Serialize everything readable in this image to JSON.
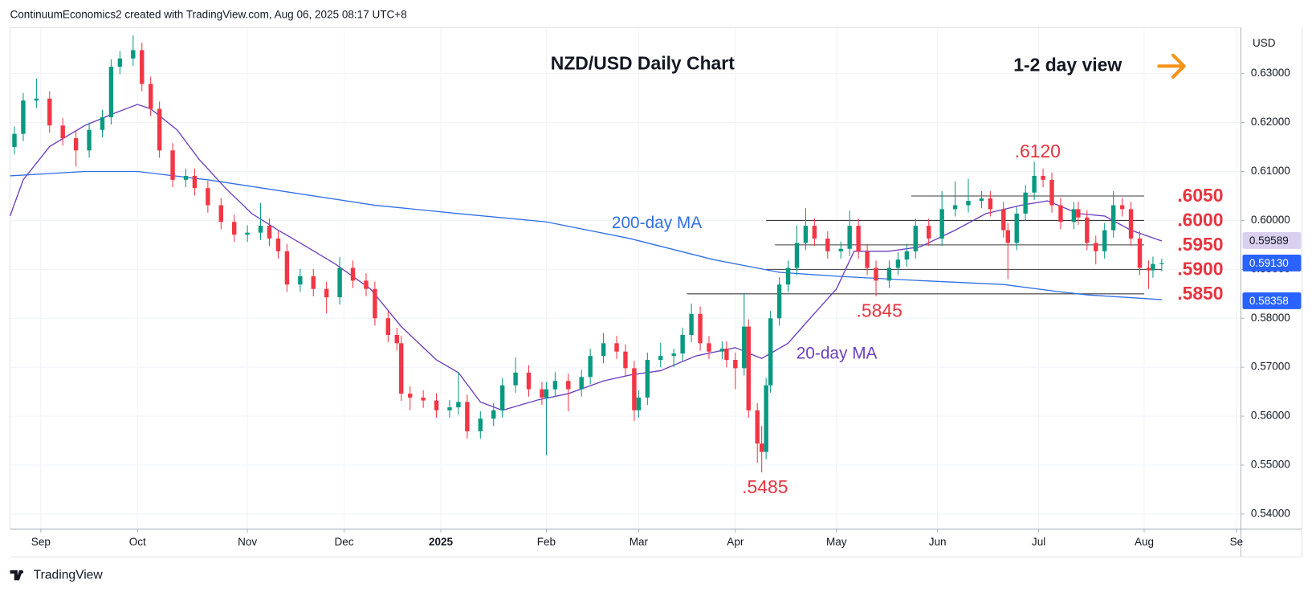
{
  "header": "ContinuumEconomics2 created with TradingView.com, Aug 06, 2025 08:17 UTC+8",
  "footer": "TradingView",
  "chart_data": {
    "type": "candlestick",
    "title": "NZD/USD Daily Chart",
    "subtitle": "1-2 day view",
    "currency": "USD",
    "grid": true,
    "up_color": "#089981",
    "down_color": "#f23645",
    "xlim": [
      0,
      280
    ],
    "ylim": [
      0.5369,
      0.6394
    ],
    "xticks": [
      {
        "value": 7,
        "label": "Sep"
      },
      {
        "value": 29,
        "label": "Oct"
      },
      {
        "value": 54,
        "label": "Nov"
      },
      {
        "value": 76,
        "label": "Dec"
      },
      {
        "value": 98,
        "label": "2025"
      },
      {
        "value": 122,
        "label": "Feb"
      },
      {
        "value": 143,
        "label": "Mar"
      },
      {
        "value": 165,
        "label": "Apr"
      },
      {
        "value": 188,
        "label": "May"
      },
      {
        "value": 211,
        "label": "Jun"
      },
      {
        "value": 234,
        "label": "Jul"
      },
      {
        "value": 258,
        "label": "Aug"
      },
      {
        "value": 279,
        "label": "Se"
      }
    ],
    "yticks": [
      {
        "value": 0.54,
        "label": "0.54000"
      },
      {
        "value": 0.55,
        "label": "0.55000"
      },
      {
        "value": 0.56,
        "label": "0.56000"
      },
      {
        "value": 0.57,
        "label": "0.57000"
      },
      {
        "value": 0.58,
        "label": "0.58000"
      },
      {
        "value": 0.59,
        "label": "0.59000"
      },
      {
        "value": 0.6,
        "label": "0.60000"
      },
      {
        "value": 0.61,
        "label": "0.61000"
      },
      {
        "value": 0.62,
        "label": "0.62000"
      },
      {
        "value": 0.63,
        "label": "0.63000"
      }
    ],
    "candles": {
      "x": [
        1,
        3,
        6,
        9,
        12,
        15,
        18,
        21,
        23,
        25,
        28,
        30,
        32,
        34,
        37,
        40,
        42,
        45,
        48,
        51,
        54,
        57,
        59,
        61,
        63,
        66,
        69,
        72,
        75,
        78,
        81,
        83,
        86,
        88,
        89,
        91,
        94,
        97,
        100,
        102,
        104,
        107,
        110,
        112,
        115,
        118,
        121,
        122,
        124,
        127,
        130,
        132,
        135,
        138,
        140,
        142,
        143,
        145,
        148,
        151,
        153,
        155,
        157,
        159,
        162,
        163,
        165,
        167,
        168,
        170,
        171,
        172,
        173,
        175,
        177,
        179,
        181,
        183,
        186,
        189,
        191,
        193,
        195,
        197,
        200,
        202,
        204,
        206,
        209,
        212,
        215,
        218,
        221,
        223,
        226,
        227,
        229,
        231,
        233,
        235,
        237,
        239,
        242,
        243,
        245,
        247,
        249,
        251,
        253,
        255,
        257,
        259,
        260,
        262
      ],
      "ohlc": [
        [
          0.615,
          0.6192,
          0.6135,
          0.6177
        ],
        [
          0.6177,
          0.626,
          0.6162,
          0.6245
        ],
        [
          0.6245,
          0.629,
          0.623,
          0.6249
        ],
        [
          0.6249,
          0.6264,
          0.6179,
          0.6194
        ],
        [
          0.6194,
          0.6209,
          0.6153,
          0.6168
        ],
        [
          0.6168,
          0.6183,
          0.611,
          0.6143
        ],
        [
          0.6143,
          0.62,
          0.6128,
          0.6185
        ],
        [
          0.6185,
          0.6226,
          0.617,
          0.6211
        ],
        [
          0.6211,
          0.6329,
          0.6196,
          0.6314
        ],
        [
          0.6314,
          0.6346,
          0.6299,
          0.6331
        ],
        [
          0.6331,
          0.6378,
          0.6316,
          0.6348
        ],
        [
          0.6348,
          0.6363,
          0.6264,
          0.6279
        ],
        [
          0.6279,
          0.6294,
          0.6213,
          0.6228
        ],
        [
          0.6228,
          0.6243,
          0.6128,
          0.6143
        ],
        [
          0.6143,
          0.6158,
          0.6068,
          0.6083
        ],
        [
          0.6083,
          0.6106,
          0.6068,
          0.6091
        ],
        [
          0.6091,
          0.6106,
          0.6051,
          0.6066
        ],
        [
          0.6066,
          0.6081,
          0.6016,
          0.6031
        ],
        [
          0.6031,
          0.6046,
          0.5982,
          0.5997
        ],
        [
          0.5997,
          0.6012,
          0.5956,
          0.5971
        ],
        [
          0.5971,
          0.599,
          0.5956,
          0.5975
        ],
        [
          0.5975,
          0.6036,
          0.596,
          0.5989
        ],
        [
          0.5989,
          0.6004,
          0.5948,
          0.5963
        ],
        [
          0.5963,
          0.5978,
          0.5922,
          0.5937
        ],
        [
          0.5937,
          0.5952,
          0.5854,
          0.5869
        ],
        [
          0.5869,
          0.5901,
          0.5854,
          0.5886
        ],
        [
          0.5886,
          0.5901,
          0.5845,
          0.586
        ],
        [
          0.586,
          0.5875,
          0.581,
          0.5843
        ],
        [
          0.5843,
          0.5925,
          0.5828,
          0.5903
        ],
        [
          0.5903,
          0.5918,
          0.5862,
          0.5877
        ],
        [
          0.5877,
          0.5892,
          0.5845,
          0.586
        ],
        [
          0.586,
          0.5875,
          0.5785,
          0.58
        ],
        [
          0.58,
          0.5815,
          0.5751,
          0.5766
        ],
        [
          0.5766,
          0.5781,
          0.5734,
          0.5749
        ],
        [
          0.5749,
          0.5764,
          0.5631,
          0.5646
        ],
        [
          0.5646,
          0.5661,
          0.5612,
          0.5638
        ],
        [
          0.5638,
          0.5653,
          0.5617,
          0.5632
        ],
        [
          0.5632,
          0.5647,
          0.5597,
          0.5612
        ],
        [
          0.5612,
          0.5633,
          0.5597,
          0.5618
        ],
        [
          0.5618,
          0.569,
          0.5603,
          0.5629
        ],
        [
          0.5629,
          0.5644,
          0.5554,
          0.5569
        ],
        [
          0.5569,
          0.561,
          0.5554,
          0.5595
        ],
        [
          0.5595,
          0.5627,
          0.558,
          0.5612
        ],
        [
          0.5612,
          0.5678,
          0.5597,
          0.5663
        ],
        [
          0.5663,
          0.572,
          0.5648,
          0.5689
        ],
        [
          0.5689,
          0.5704,
          0.564,
          0.5655
        ],
        [
          0.5655,
          0.567,
          0.5623,
          0.5638
        ],
        [
          0.5638,
          0.567,
          0.552,
          0.5655
        ],
        [
          0.5655,
          0.569,
          0.564,
          0.5672
        ],
        [
          0.5672,
          0.5687,
          0.561,
          0.5655
        ],
        [
          0.5655,
          0.5695,
          0.564,
          0.568
        ],
        [
          0.568,
          0.5738,
          0.5665,
          0.5723
        ],
        [
          0.5723,
          0.577,
          0.5708,
          0.5749
        ],
        [
          0.5749,
          0.5764,
          0.5717,
          0.5732
        ],
        [
          0.5732,
          0.5747,
          0.5683,
          0.5698
        ],
        [
          0.5698,
          0.5713,
          0.559,
          0.5612
        ],
        [
          0.5612,
          0.5653,
          0.5597,
          0.5638
        ],
        [
          0.5638,
          0.573,
          0.5623,
          0.5715
        ],
        [
          0.5715,
          0.575,
          0.57,
          0.5723
        ],
        [
          0.5723,
          0.5738,
          0.57,
          0.5728
        ],
        [
          0.5728,
          0.5781,
          0.5713,
          0.5766
        ],
        [
          0.5766,
          0.583,
          0.5751,
          0.5809
        ],
        [
          0.5809,
          0.5824,
          0.5734,
          0.5749
        ],
        [
          0.5749,
          0.5764,
          0.5717,
          0.5732
        ],
        [
          0.5732,
          0.5753,
          0.5717,
          0.5738
        ],
        [
          0.5738,
          0.5753,
          0.57,
          0.5715
        ],
        [
          0.5715,
          0.573,
          0.5655,
          0.5698
        ],
        [
          0.5698,
          0.5852,
          0.5683,
          0.5783
        ],
        [
          0.5783,
          0.5798,
          0.5597,
          0.5612
        ],
        [
          0.5612,
          0.5627,
          0.5505,
          0.5544
        ],
        [
          0.5544,
          0.558,
          0.5485,
          0.5527
        ],
        [
          0.5527,
          0.5678,
          0.5512,
          0.5663
        ],
        [
          0.5663,
          0.5815,
          0.5648,
          0.58
        ],
        [
          0.58,
          0.5884,
          0.5785,
          0.5869
        ],
        [
          0.5869,
          0.5918,
          0.5854,
          0.5903
        ],
        [
          0.5903,
          0.599,
          0.5888,
          0.5954
        ],
        [
          0.5954,
          0.6025,
          0.5939,
          0.5989
        ],
        [
          0.5989,
          0.6004,
          0.5948,
          0.5963
        ],
        [
          0.5963,
          0.5978,
          0.5922,
          0.5937
        ],
        [
          0.5937,
          0.5957,
          0.5922,
          0.5942
        ],
        [
          0.5942,
          0.602,
          0.5927,
          0.5989
        ],
        [
          0.5989,
          0.6004,
          0.5922,
          0.5937
        ],
        [
          0.5937,
          0.5952,
          0.5888,
          0.5903
        ],
        [
          0.5903,
          0.5918,
          0.5845,
          0.5877
        ],
        [
          0.5877,
          0.5918,
          0.5862,
          0.5903
        ],
        [
          0.5903,
          0.5935,
          0.5888,
          0.592
        ],
        [
          0.592,
          0.5952,
          0.5905,
          0.5937
        ],
        [
          0.5937,
          0.6004,
          0.5922,
          0.5989
        ],
        [
          0.5989,
          0.6004,
          0.5948,
          0.5963
        ],
        [
          0.5963,
          0.606,
          0.5948,
          0.6023
        ],
        [
          0.6023,
          0.608,
          0.6008,
          0.6031
        ],
        [
          0.6031,
          0.6085,
          0.6016,
          0.604
        ],
        [
          0.604,
          0.606,
          0.6025,
          0.6045
        ],
        [
          0.6045,
          0.606,
          0.6008,
          0.6023
        ],
        [
          0.6023,
          0.6038,
          0.5965,
          0.598
        ],
        [
          0.598,
          0.5995,
          0.588,
          0.5954
        ],
        [
          0.5954,
          0.6029,
          0.5939,
          0.6014
        ],
        [
          0.6014,
          0.6072,
          0.5999,
          0.6057
        ],
        [
          0.6057,
          0.612,
          0.6042,
          0.6091
        ],
        [
          0.6091,
          0.6106,
          0.6068,
          0.6083
        ],
        [
          0.6083,
          0.6098,
          0.6016,
          0.6031
        ],
        [
          0.6031,
          0.6046,
          0.5982,
          0.5997
        ],
        [
          0.5997,
          0.6038,
          0.5982,
          0.6023
        ],
        [
          0.6023,
          0.6038,
          0.5991,
          0.6006
        ],
        [
          0.6006,
          0.6021,
          0.5939,
          0.5954
        ],
        [
          0.5954,
          0.5969,
          0.591,
          0.5937
        ],
        [
          0.5937,
          0.5995,
          0.5922,
          0.598
        ],
        [
          0.598,
          0.606,
          0.5965,
          0.6031
        ],
        [
          0.6031,
          0.6046,
          0.6008,
          0.6023
        ],
        [
          0.6023,
          0.6038,
          0.5948,
          0.5963
        ],
        [
          0.5963,
          0.5978,
          0.5888,
          0.5903
        ],
        [
          0.5903,
          0.5918,
          0.586,
          0.5898
        ],
        [
          0.5898,
          0.5926,
          0.5883,
          0.5911
        ],
        [
          0.5911,
          0.5922,
          0.5896,
          0.5913
        ]
      ]
    },
    "series": [
      {
        "name": "200-day MA",
        "color": "#2f6fe4",
        "x": [
          0,
          17,
          29,
          45,
          64,
          83,
          102,
          122,
          141,
          160,
          175,
          188,
          207,
          226,
          238,
          245,
          262
        ],
        "values": [
          0.6091,
          0.61,
          0.61,
          0.6083,
          0.6057,
          0.6031,
          0.6014,
          0.5997,
          0.5963,
          0.592,
          0.5894,
          0.5886,
          0.5877,
          0.5869,
          0.5855,
          0.5848,
          0.5838
        ]
      },
      {
        "name": "20-day MA",
        "color": "#6d3fc0",
        "x": [
          0,
          3,
          9,
          17,
          24,
          29,
          32,
          38,
          43,
          49,
          55,
          61,
          66,
          74,
          82,
          89,
          97,
          102,
          107,
          112,
          120,
          127,
          135,
          141,
          148,
          156,
          165,
          171,
          177,
          182,
          188,
          192,
          200,
          207,
          215,
          222,
          230,
          236,
          243,
          249,
          255,
          262
        ],
        "values": [
          0.6009,
          0.6083,
          0.6151,
          0.6194,
          0.622,
          0.6237,
          0.6228,
          0.6185,
          0.6125,
          0.6066,
          0.6014,
          0.598,
          0.5954,
          0.5911,
          0.586,
          0.5783,
          0.5715,
          0.5689,
          0.5629,
          0.5612,
          0.5633,
          0.5646,
          0.5672,
          0.5684,
          0.5693,
          0.5723,
          0.574,
          0.5718,
          0.5749,
          0.58,
          0.586,
          0.5937,
          0.5937,
          0.5946,
          0.598,
          0.6014,
          0.6031,
          0.604,
          0.6014,
          0.6009,
          0.598,
          0.5958
        ]
      }
    ],
    "levels": [
      {
        "value": 0.605,
        "label": ".6050",
        "from": 205,
        "to": 258
      },
      {
        "value": 0.6,
        "label": ".6000",
        "from": 172,
        "to": 258
      },
      {
        "value": 0.595,
        "label": ".5950",
        "from": 174,
        "to": 258
      },
      {
        "value": 0.59,
        "label": ".5900",
        "from": 172,
        "to": 262
      },
      {
        "value": 0.585,
        "label": ".5850",
        "from": 154,
        "to": 258
      }
    ],
    "annotations": [
      {
        "x": 233,
        "value": 0.612,
        "label": ".6120"
      },
      {
        "x": 197,
        "value": 0.5845,
        "label": ".5845"
      },
      {
        "x": 171,
        "value": 0.5485,
        "label": ".5485"
      }
    ],
    "badges": [
      {
        "value": 0.59589,
        "label": "0.59589",
        "color": "#d9d0f0",
        "text_color": "#131722"
      },
      {
        "value": 0.5913,
        "label": "0.59130",
        "color": "#2962ff",
        "text_color": "#ffffff"
      },
      {
        "value": 0.58358,
        "label": "0.58358",
        "color": "#2962ff",
        "text_color": "#ffffff"
      }
    ]
  }
}
